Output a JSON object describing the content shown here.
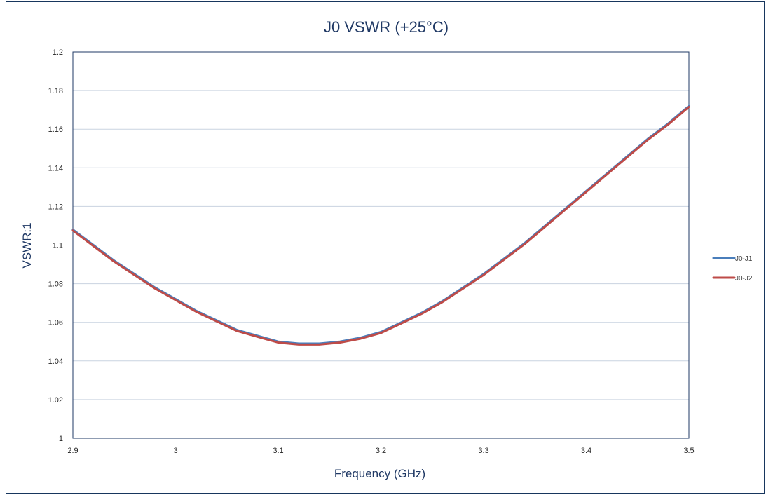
{
  "chart_data": {
    "type": "line",
    "title": "J0 VSWR (+25°C)",
    "xlabel": "Frequency (GHz)",
    "ylabel": "VSWR:1",
    "xlim": [
      2.9,
      3.5
    ],
    "ylim": [
      1,
      1.2
    ],
    "x_ticks": [
      "2.9",
      "3",
      "3.1",
      "3.2",
      "3.3",
      "3.4",
      "3.5"
    ],
    "y_ticks": [
      "1",
      "1.02",
      "1.04",
      "1.06",
      "1.08",
      "1.1",
      "1.12",
      "1.14",
      "1.16",
      "1.18",
      "1.2"
    ],
    "grid": true,
    "legend_position": "right",
    "x": [
      2.9,
      2.92,
      2.94,
      2.96,
      2.98,
      3.0,
      3.02,
      3.04,
      3.06,
      3.08,
      3.1,
      3.12,
      3.14,
      3.16,
      3.18,
      3.2,
      3.22,
      3.24,
      3.26,
      3.28,
      3.3,
      3.32,
      3.34,
      3.36,
      3.38,
      3.4,
      3.42,
      3.44,
      3.46,
      3.48,
      3.5
    ],
    "series": [
      {
        "name": "J0-J1",
        "color": "#4a7ebb",
        "values": [
          1.108,
          1.1,
          1.092,
          1.085,
          1.078,
          1.072,
          1.066,
          1.061,
          1.056,
          1.053,
          1.05,
          1.049,
          1.049,
          1.05,
          1.052,
          1.055,
          1.06,
          1.065,
          1.071,
          1.078,
          1.085,
          1.093,
          1.101,
          1.11,
          1.119,
          1.128,
          1.137,
          1.146,
          1.155,
          1.163,
          1.172
        ]
      },
      {
        "name": "J0-J2",
        "color": "#be4b48",
        "values": [
          1.1075,
          1.0995,
          1.0915,
          1.0845,
          1.0775,
          1.0715,
          1.0655,
          1.0605,
          1.0555,
          1.0525,
          1.0495,
          1.0485,
          1.0485,
          1.0495,
          1.0515,
          1.0545,
          1.0595,
          1.0645,
          1.0705,
          1.0775,
          1.0845,
          1.0925,
          1.1005,
          1.1095,
          1.1185,
          1.1275,
          1.1365,
          1.1455,
          1.1545,
          1.1625,
          1.1715
        ]
      }
    ]
  }
}
